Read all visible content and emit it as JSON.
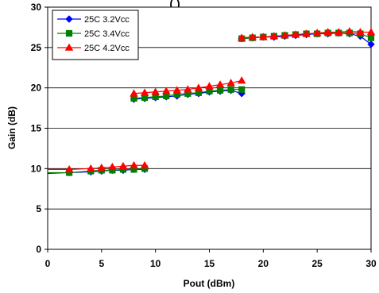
{
  "chart_data": {
    "type": "line",
    "title": "(                    )",
    "xlabel": "Pout (dBm)",
    "ylabel": "Gain (dB)",
    "xlim": [
      0,
      30
    ],
    "ylim": [
      0,
      30
    ],
    "xticks": [
      0,
      5,
      10,
      15,
      20,
      25,
      30
    ],
    "yticks": [
      0,
      5,
      10,
      15,
      20,
      25,
      30
    ],
    "grid": true,
    "legend_position": "top-left",
    "series": [
      {
        "name": "25C 3.2Vcc",
        "color": "#0000ff",
        "marker": "diamond",
        "segments": [
          {
            "x": [
              0,
              2,
              4,
              5,
              6,
              7,
              8,
              9
            ],
            "y": [
              9.4,
              9.5,
              9.6,
              9.7,
              9.8,
              9.8,
              9.9,
              9.9
            ]
          },
          {
            "x": [
              8,
              9,
              10,
              11,
              12,
              13,
              14,
              15,
              16,
              17,
              18
            ],
            "y": [
              18.6,
              18.7,
              18.8,
              18.9,
              19.0,
              19.2,
              19.3,
              19.5,
              19.6,
              19.7,
              19.3
            ]
          },
          {
            "x": [
              18,
              19,
              20,
              21,
              22,
              23,
              24,
              25,
              26,
              27,
              28,
              29,
              30
            ],
            "y": [
              26.1,
              26.2,
              26.3,
              26.3,
              26.4,
              26.5,
              26.6,
              26.7,
              26.7,
              26.8,
              26.7,
              26.4,
              25.4
            ]
          }
        ]
      },
      {
        "name": "25C 3.4Vcc",
        "color": "#008000",
        "marker": "square",
        "segments": [
          {
            "x": [
              0,
              2,
              4,
              5,
              6,
              7,
              8,
              9
            ],
            "y": [
              9.5,
              9.5,
              9.7,
              9.8,
              9.8,
              9.9,
              9.9,
              10.0
            ]
          },
          {
            "x": [
              8,
              9,
              10,
              11,
              12,
              13,
              14,
              15,
              16,
              17,
              18
            ],
            "y": [
              18.7,
              18.8,
              18.9,
              19.0,
              19.2,
              19.3,
              19.4,
              19.6,
              19.7,
              19.8,
              19.8
            ]
          },
          {
            "x": [
              18,
              19,
              20,
              21,
              22,
              23,
              24,
              25,
              26,
              27,
              28,
              29,
              30
            ],
            "y": [
              26.1,
              26.2,
              26.3,
              26.4,
              26.5,
              26.6,
              26.7,
              26.7,
              26.8,
              26.8,
              26.8,
              26.7,
              26.2
            ]
          }
        ]
      },
      {
        "name": "25C 4.2Vcc",
        "color": "#ff0000",
        "marker": "triangle",
        "segments": [
          {
            "x": [
              0,
              2,
              4,
              5,
              6,
              7,
              8,
              9
            ],
            "y": [
              9.9,
              9.9,
              10.0,
              10.1,
              10.2,
              10.3,
              10.4,
              10.4
            ]
          },
          {
            "x": [
              8,
              9,
              10,
              11,
              12,
              13,
              14,
              15,
              16,
              17,
              18
            ],
            "y": [
              19.3,
              19.4,
              19.5,
              19.6,
              19.7,
              19.8,
              20.0,
              20.2,
              20.4,
              20.6,
              20.9
            ]
          },
          {
            "x": [
              18,
              19,
              20,
              21,
              22,
              23,
              24,
              25,
              26,
              27,
              28,
              29,
              30
            ],
            "y": [
              26.2,
              26.3,
              26.3,
              26.4,
              26.5,
              26.6,
              26.7,
              26.8,
              26.9,
              26.9,
              27.0,
              26.9,
              26.9
            ]
          }
        ]
      }
    ]
  }
}
